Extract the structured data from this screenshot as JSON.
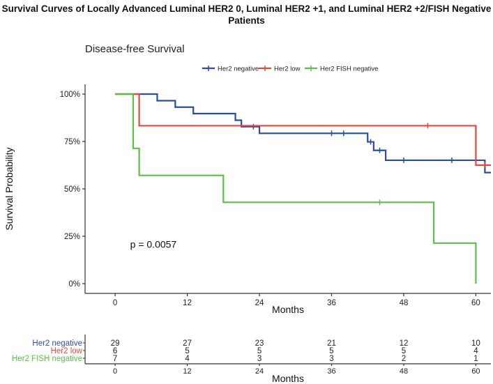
{
  "figure": {
    "title_line1": "Survival Curves of Locally Advanced Luminal HER2 0, Luminal HER2 +1, and Luminal HER2 +2/FISH Negative",
    "title_line2": "Patients"
  },
  "chart_data": {
    "type": "line",
    "step": true,
    "title": "Disease-free Survival",
    "xlabel": "Months",
    "ylabel": "Survival Probability",
    "xlim": [
      -5,
      62.5
    ],
    "ylim": [
      0,
      1
    ],
    "x_ticks": [
      0,
      12,
      24,
      36,
      48,
      60
    ],
    "y_ticks": [
      {
        "value": 0,
        "label": "0%"
      },
      {
        "value": 0.25,
        "label": "25%"
      },
      {
        "value": 0.5,
        "label": "50%"
      },
      {
        "value": 0.75,
        "label": "75%"
      },
      {
        "value": 1,
        "label": "100%"
      }
    ],
    "legend_position": "top",
    "annotation": "p = 0.0057",
    "annotation_position": {
      "x": 2.5,
      "y": 0.19
    },
    "series": [
      {
        "name": "Her2 negative",
        "color": "#2a4ea3",
        "steps": [
          [
            0,
            1.0
          ],
          [
            7,
            0.965
          ],
          [
            10,
            0.931
          ],
          [
            13,
            0.897
          ],
          [
            20,
            0.862
          ],
          [
            21,
            0.828
          ],
          [
            24,
            0.793
          ],
          [
            42,
            0.748
          ],
          [
            43,
            0.703
          ],
          [
            45,
            0.651
          ],
          [
            61.5,
            0.586
          ],
          [
            62.5,
            0.586
          ]
        ],
        "censor": [
          [
            23,
            0.828
          ],
          [
            36,
            0.793
          ],
          [
            38,
            0.793
          ],
          [
            42.5,
            0.748
          ],
          [
            44,
            0.703
          ],
          [
            48,
            0.651
          ],
          [
            56,
            0.651
          ]
        ]
      },
      {
        "name": "Her2 low",
        "color": "#e8473b",
        "steps": [
          [
            0,
            1.0
          ],
          [
            4,
            0.833
          ],
          [
            60,
            0.625
          ],
          [
            62.5,
            0.625
          ]
        ],
        "censor": [
          [
            52,
            0.833
          ],
          [
            61.5,
            0.625
          ]
        ]
      },
      {
        "name": "Her2 FISH negative",
        "color": "#5cbf4a",
        "steps": [
          [
            0,
            1.0
          ],
          [
            3,
            0.714
          ],
          [
            4,
            0.571
          ],
          [
            18,
            0.429
          ],
          [
            53,
            0.214
          ],
          [
            60,
            0.0
          ]
        ],
        "censor": [
          [
            44,
            0.429
          ]
        ]
      }
    ],
    "risk_table": {
      "xlabel": "Months",
      "rows": [
        {
          "name": "Her2 negative",
          "color": "#2a4ea3",
          "counts": [
            29,
            27,
            23,
            21,
            12,
            10
          ]
        },
        {
          "name": "Her2 low",
          "color": "#e8473b",
          "counts": [
            6,
            5,
            5,
            5,
            5,
            4
          ]
        },
        {
          "name": "Her2 FISH negative",
          "color": "#5cbf4a",
          "counts": [
            7,
            4,
            3,
            3,
            2,
            1
          ]
        }
      ]
    }
  }
}
